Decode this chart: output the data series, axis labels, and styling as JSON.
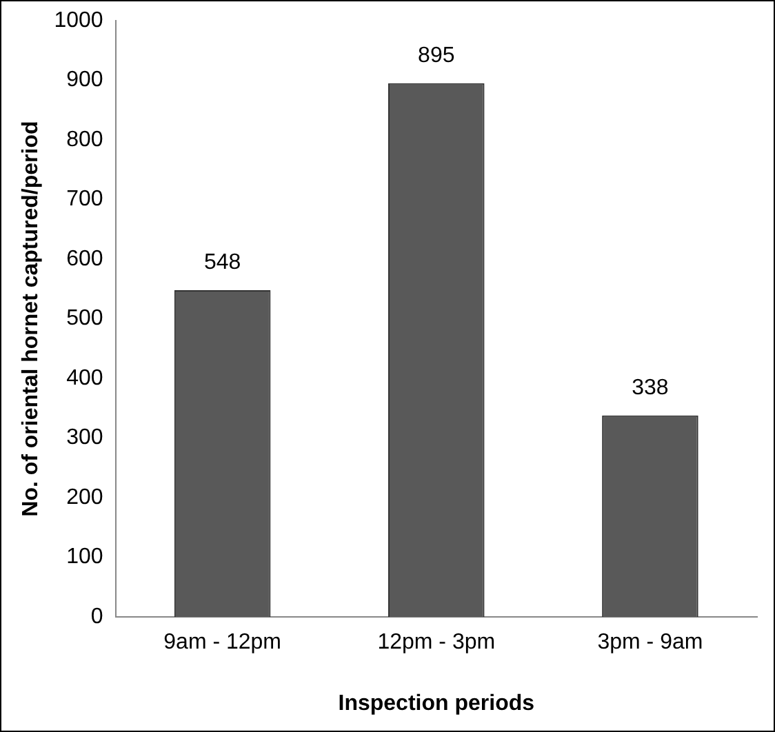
{
  "chart_data": {
    "type": "bar",
    "xlabel": "Inspection periods",
    "ylabel": "No. of oriental hornet captured/period",
    "categories": [
      "9am - 12pm",
      "12pm - 3pm",
      "3pm - 9am"
    ],
    "values": [
      548,
      895,
      338
    ],
    "color": "#595959",
    "ylim": [
      0,
      1000
    ],
    "yticks": [
      0,
      100,
      200,
      300,
      400,
      500,
      600,
      700,
      800,
      900,
      1000
    ],
    "grid": false,
    "legend": false,
    "data_labels": true
  }
}
